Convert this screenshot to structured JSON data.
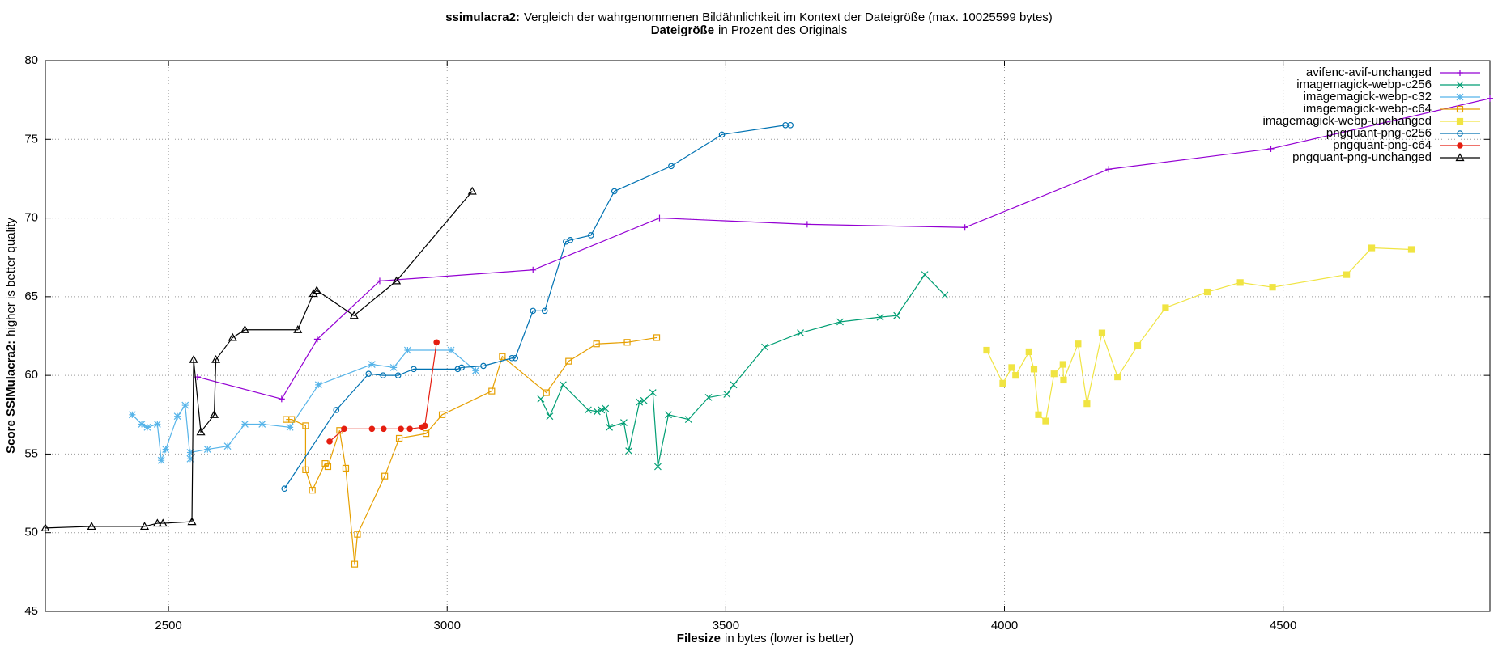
{
  "chart_data": {
    "type": "line",
    "title_bold": "ssimulacra2:",
    "title": "Vergleich der wahrgenommenen Bildähnlichkeit im Kontext der Dateigröße (max. 10025599 bytes)",
    "subtitle_bold": "Dateigröße",
    "subtitle": "in Prozent des Originals",
    "xlabel_bold": "Filesize",
    "xlabel": "in bytes (lower is better)",
    "ylabel_bold": "Score SSIMulacra2:",
    "ylabel": "higher is better quality",
    "xlim": [
      2279,
      4871
    ],
    "ylim": [
      45,
      80
    ],
    "xticks": [
      2500,
      3000,
      3500,
      4000,
      4500
    ],
    "yticks": [
      45,
      50,
      55,
      60,
      65,
      70,
      75,
      80
    ],
    "grid": true,
    "legend": "top-right",
    "series": [
      {
        "name": "avifenc-avif-unchanged",
        "color": "#9400d3",
        "marker": "plus",
        "x": [
          2552,
          2703,
          2767,
          2879,
          3154,
          3381,
          3646,
          3929,
          4187,
          4478,
          4871
        ],
        "values": [
          59.9,
          58.5,
          62.3,
          66.0,
          66.7,
          70.0,
          69.6,
          69.4,
          73.1,
          74.4,
          77.6
        ]
      },
      {
        "name": "imagemagick-webp-c256",
        "color": "#009e73",
        "marker": "cross",
        "x": [
          3168,
          3184,
          3208,
          3253,
          3269,
          3277,
          3284,
          3291,
          3317,
          3326,
          3345,
          3353,
          3369,
          3378,
          3397,
          3433,
          3469,
          3502,
          3514,
          3570,
          3634,
          3705,
          3777,
          3807,
          3857,
          3893
        ],
        "values": [
          58.5,
          57.4,
          59.4,
          57.8,
          57.7,
          57.8,
          57.9,
          56.7,
          57.0,
          55.2,
          58.3,
          58.4,
          58.9,
          54.2,
          57.5,
          57.2,
          58.6,
          58.8,
          59.4,
          61.8,
          62.7,
          63.4,
          63.7,
          63.8,
          66.4,
          65.1
        ]
      },
      {
        "name": "imagemagick-webp-c32",
        "color": "#56b4e9",
        "marker": "star",
        "x": [
          2435,
          2452,
          2462,
          2480,
          2487,
          2495,
          2516,
          2530,
          2539,
          2539,
          2570,
          2606,
          2637,
          2668,
          2718,
          2769,
          2865,
          2904,
          2929,
          3007,
          3051
        ],
        "values": [
          57.5,
          56.9,
          56.7,
          56.9,
          54.6,
          55.3,
          57.4,
          58.1,
          54.7,
          55.1,
          55.3,
          55.5,
          56.9,
          56.9,
          56.7,
          59.4,
          60.7,
          60.5,
          61.6,
          61.6,
          60.3
        ]
      },
      {
        "name": "imagemagick-webp-c64",
        "color": "#e69f00",
        "marker": "square",
        "x": [
          2711,
          2721,
          2746,
          2746,
          2758,
          2781,
          2786,
          2807,
          2818,
          2834,
          2839,
          2888,
          2914,
          2962,
          2991,
          3080,
          3099,
          3178,
          3218,
          3268,
          3323,
          3376
        ],
        "values": [
          57.2,
          57.2,
          56.8,
          54.0,
          52.7,
          54.4,
          54.2,
          56.5,
          54.1,
          48.0,
          49.9,
          53.6,
          56.0,
          56.3,
          57.5,
          59.0,
          61.2,
          58.9,
          60.9,
          62.0,
          62.1,
          62.4
        ]
      },
      {
        "name": "imagemagick-webp-unchanged",
        "color": "#f0e442",
        "marker": "filled-square",
        "x": [
          3968,
          3997,
          4013,
          4020,
          4044,
          4053,
          4061,
          4074,
          4089,
          4105,
          4106,
          4132,
          4148,
          4175,
          4203,
          4239,
          4289,
          4364,
          4423,
          4481,
          4614,
          4659,
          4730
        ],
        "values": [
          61.6,
          59.5,
          60.5,
          60.0,
          61.5,
          60.4,
          57.5,
          57.1,
          60.1,
          60.7,
          59.7,
          62.0,
          58.2,
          62.7,
          59.9,
          61.9,
          64.3,
          65.3,
          65.9,
          65.6,
          66.4,
          68.1,
          68.0
        ]
      },
      {
        "name": "pngquant-png-c256",
        "color": "#0072b2",
        "marker": "circle",
        "x": [
          2708,
          2801,
          2859,
          2885,
          2912,
          2940,
          3019,
          3026,
          3065,
          3116,
          3122,
          3154,
          3175,
          3213,
          3221,
          3258,
          3300,
          3402,
          3493,
          3607,
          3616
        ],
        "values": [
          52.8,
          57.8,
          60.1,
          60.0,
          60.0,
          60.4,
          60.4,
          60.5,
          60.6,
          61.1,
          61.1,
          64.1,
          64.1,
          68.5,
          68.6,
          68.9,
          71.7,
          73.3,
          75.3,
          75.9,
          75.9
        ]
      },
      {
        "name": "pngquant-png-c64",
        "color": "#e51e10",
        "marker": "filled-circle",
        "x": [
          2789,
          2815,
          2865,
          2886,
          2917,
          2933,
          2955,
          2960,
          2981
        ],
        "values": [
          55.8,
          56.6,
          56.6,
          56.6,
          56.6,
          56.6,
          56.7,
          56.8,
          62.1
        ]
      },
      {
        "name": "pngquant-png-unchanged",
        "color": "#000000",
        "marker": "triangle",
        "x": [
          2279,
          2362,
          2457,
          2480,
          2490,
          2542,
          2545,
          2558,
          2582,
          2585,
          2615,
          2637,
          2732,
          2760,
          2766,
          2833,
          2909,
          3045
        ],
        "values": [
          50.3,
          50.4,
          50.4,
          50.6,
          50.6,
          50.7,
          61.0,
          56.4,
          57.5,
          61.0,
          62.4,
          62.9,
          62.9,
          65.2,
          65.4,
          63.8,
          66.0,
          71.7
        ]
      }
    ]
  }
}
